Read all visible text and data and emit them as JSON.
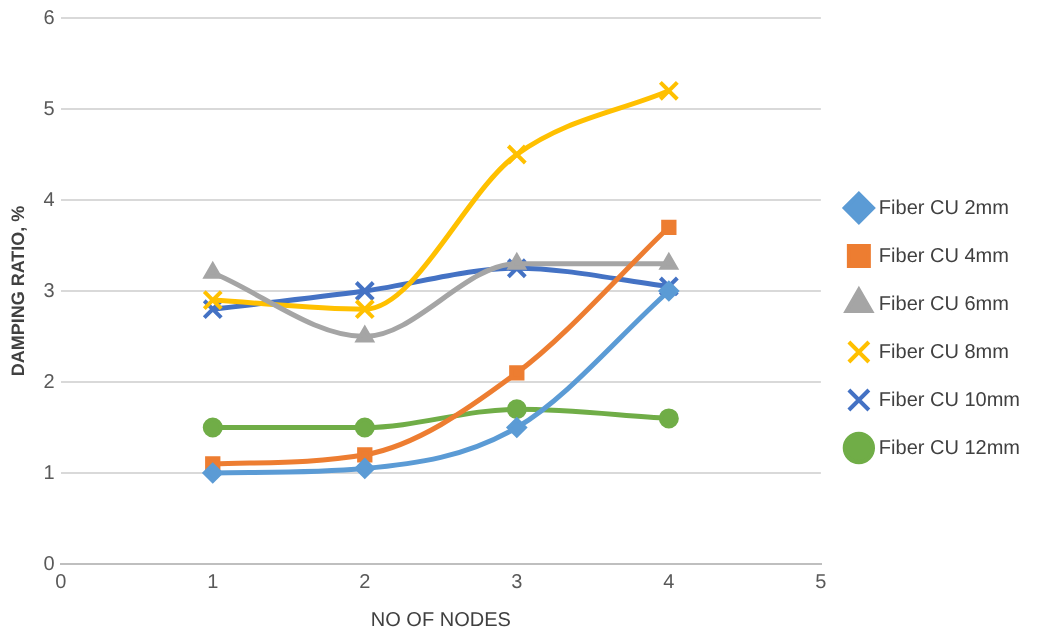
{
  "chart_data": {
    "type": "line",
    "xlabel": "NO OF NODES",
    "ylabel": "DAMPING RATIO, %",
    "x": [
      1,
      2,
      3,
      4
    ],
    "xlim": [
      0,
      5
    ],
    "xticks": [
      0,
      1,
      2,
      3,
      4,
      5
    ],
    "ylim": [
      0,
      6
    ],
    "yticks": [
      0,
      1,
      2,
      3,
      4,
      5,
      6
    ],
    "grid": "y",
    "legend": "right",
    "series": [
      {
        "name": "Fiber CU 2mm",
        "color": "#5b9bd5",
        "marker": "diamond",
        "values": [
          1.0,
          1.05,
          1.5,
          3.0
        ]
      },
      {
        "name": "Fiber CU 4mm",
        "color": "#ed7d31",
        "marker": "square",
        "values": [
          1.1,
          1.2,
          2.1,
          3.7
        ]
      },
      {
        "name": "Fiber CU 6mm",
        "color": "#a5a5a5",
        "marker": "triangle",
        "values": [
          3.2,
          2.5,
          3.3,
          3.3
        ]
      },
      {
        "name": "Fiber CU 8mm",
        "color": "#ffc000",
        "marker": "cross",
        "values": [
          2.9,
          2.8,
          4.5,
          5.2
        ]
      },
      {
        "name": "Fiber CU 10mm",
        "color": "#4472c4",
        "marker": "cross",
        "values": [
          2.8,
          3.0,
          3.25,
          3.05
        ]
      },
      {
        "name": "Fiber CU 12mm",
        "color": "#70ad47",
        "marker": "circle",
        "values": [
          1.5,
          1.5,
          1.7,
          1.6
        ]
      }
    ]
  }
}
